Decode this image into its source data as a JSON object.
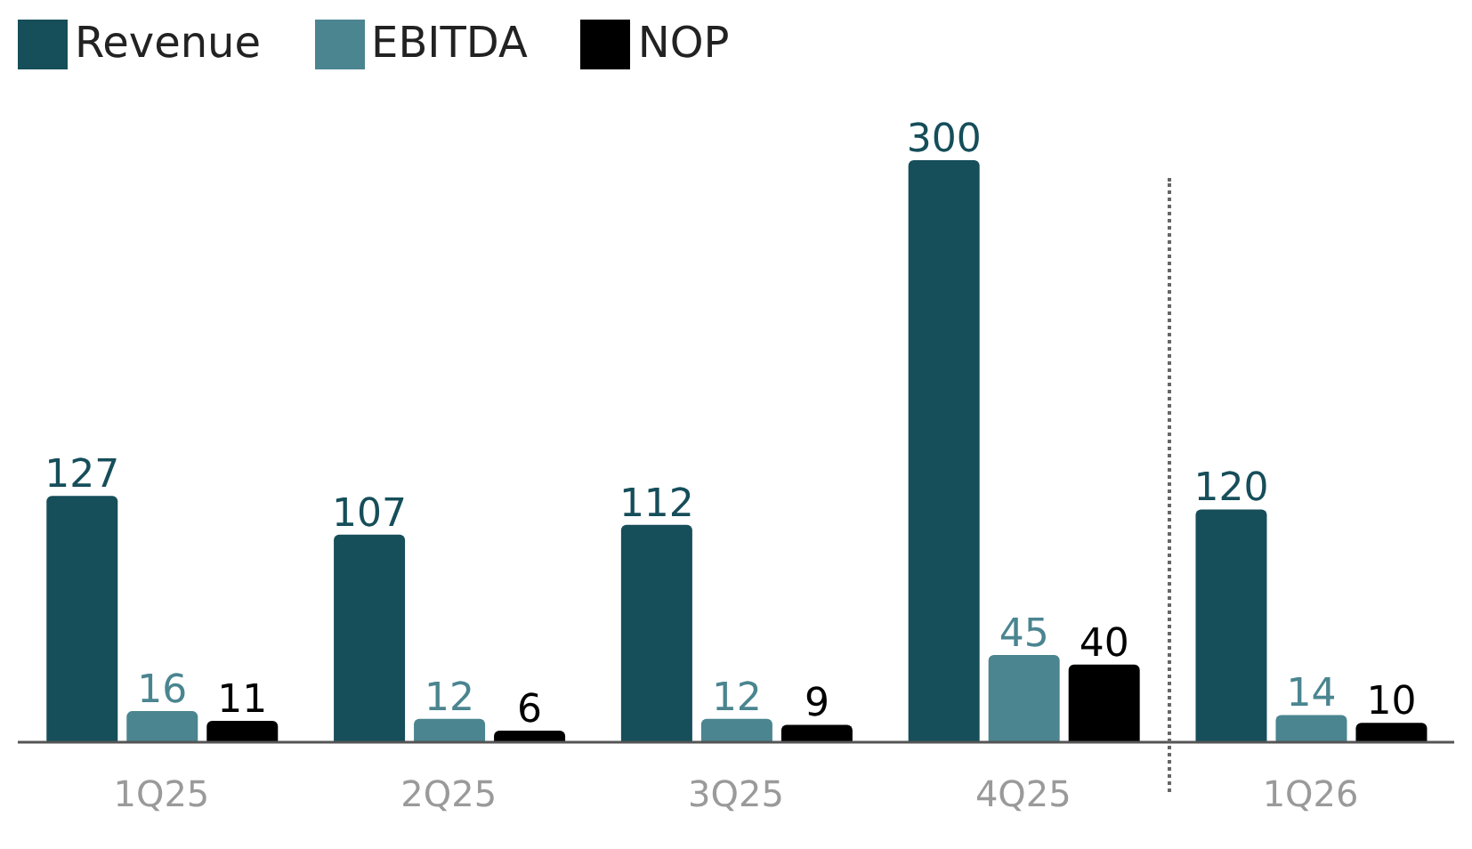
{
  "chart_data": {
    "type": "bar",
    "categories": [
      "1Q25",
      "2Q25",
      "3Q25",
      "4Q25",
      "1Q26"
    ],
    "series": [
      {
        "name": "Revenue",
        "color": "#164e5a",
        "values": [
          127,
          107,
          112,
          300,
          120
        ]
      },
      {
        "name": "EBITDA",
        "color": "#4a8590",
        "values": [
          16,
          12,
          12,
          45,
          14
        ]
      },
      {
        "name": "NOP",
        "color": "#000000",
        "values": [
          11,
          6,
          9,
          40,
          10
        ]
      }
    ],
    "data_labels": true,
    "legend": "top left",
    "grid": false
  }
}
